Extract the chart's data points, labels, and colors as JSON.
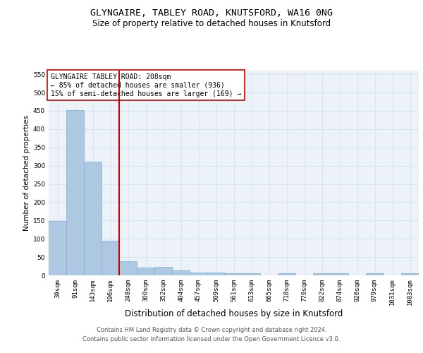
{
  "title": "GLYNGAIRE, TABLEY ROAD, KNUTSFORD, WA16 0NG",
  "subtitle": "Size of property relative to detached houses in Knutsford",
  "xlabel": "Distribution of detached houses by size in Knutsford",
  "ylabel": "Number of detached properties",
  "categories": [
    "39sqm",
    "91sqm",
    "143sqm",
    "196sqm",
    "248sqm",
    "300sqm",
    "352sqm",
    "404sqm",
    "457sqm",
    "509sqm",
    "561sqm",
    "613sqm",
    "665sqm",
    "718sqm",
    "770sqm",
    "822sqm",
    "874sqm",
    "926sqm",
    "979sqm",
    "1031sqm",
    "1083sqm"
  ],
  "values": [
    148,
    452,
    310,
    95,
    38,
    22,
    23,
    14,
    7,
    7,
    5,
    5,
    0,
    5,
    0,
    5,
    5,
    0,
    5,
    0,
    5
  ],
  "bar_color": "#adc8e0",
  "bar_edgecolor": "#7aafd4",
  "grid_color": "#d8e4f0",
  "background_color": "#edf2f9",
  "red_line_color": "#cc0000",
  "annotation_text": "GLYNGAIRE TABLEY ROAD: 208sqm\n← 85% of detached houses are smaller (936)\n15% of semi-detached houses are larger (169) →",
  "annotation_box_edgecolor": "#cc0000",
  "annotation_fontsize": 7.0,
  "ylim": [
    0,
    560
  ],
  "yticks": [
    0,
    50,
    100,
    150,
    200,
    250,
    300,
    350,
    400,
    450,
    500,
    550
  ],
  "footer_line1": "Contains HM Land Registry data © Crown copyright and database right 2024.",
  "footer_line2": "Contains public sector information licensed under the Open Government Licence v3.0.",
  "title_fontsize": 9.5,
  "subtitle_fontsize": 8.5,
  "xlabel_fontsize": 8.5,
  "ylabel_fontsize": 7.5,
  "tick_fontsize": 6.5,
  "footer_fontsize": 6.0
}
